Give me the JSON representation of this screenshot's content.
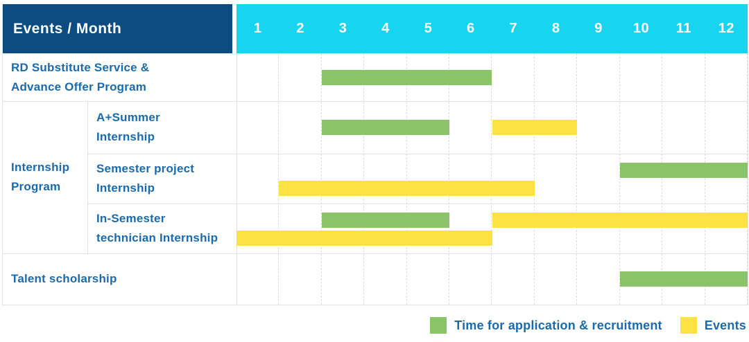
{
  "table": {
    "title": "Events / Month",
    "months": [
      "1",
      "2",
      "3",
      "4",
      "5",
      "6",
      "7",
      "8",
      "9",
      "10",
      "11",
      "12"
    ],
    "group_label_lines": [
      "Internship",
      "Program"
    ],
    "rows": [
      {
        "id": "rd-substitute-service-advance-offer-program",
        "label_lines": [
          "RD Substitute Service &",
          "Advance Offer Program"
        ],
        "group": null,
        "lines": [
          [
            {
              "type": "application",
              "start": 3,
              "end": 6
            }
          ]
        ]
      },
      {
        "id": "a-plus-summer-internship",
        "label_lines": [
          "A+Summer",
          "Internship"
        ],
        "group": "internship-program",
        "lines": [
          [
            {
              "type": "application",
              "start": 3,
              "end": 5
            },
            {
              "type": "events",
              "start": 7,
              "end": 8
            }
          ]
        ]
      },
      {
        "id": "semester-project-internship",
        "label_lines": [
          "Semester project",
          "Internship"
        ],
        "group": "internship-program",
        "lines": [
          [
            {
              "type": "application",
              "start": 10,
              "end": 12
            }
          ],
          [
            {
              "type": "events",
              "start": 2,
              "end": 7
            }
          ]
        ]
      },
      {
        "id": "in-semester-technician-internship",
        "label_lines": [
          "In-Semester",
          "technician Internship"
        ],
        "group": "internship-program",
        "lines": [
          [
            {
              "type": "application",
              "start": 3,
              "end": 5
            },
            {
              "type": "events",
              "start": 7,
              "end": 12
            }
          ],
          [
            {
              "type": "events",
              "start": 1,
              "end": 6
            }
          ]
        ]
      },
      {
        "id": "talent-scholarship",
        "label_lines": [
          "Talent scholarship"
        ],
        "group": null,
        "lines": [
          [
            {
              "type": "application",
              "start": 10,
              "end": 12
            }
          ]
        ]
      }
    ],
    "legend": [
      {
        "type": "application",
        "label": "Time for application & recruitment"
      },
      {
        "type": "events",
        "label": "Events"
      }
    ]
  },
  "colors": {
    "header_bg": "#0c4c80",
    "months_bg": "#17d5ee",
    "header_text": "#ffffff",
    "label_text": "#1b6aab",
    "application": "#8bc369",
    "events": "#fde244"
  },
  "chart_data": {
    "type": "table",
    "subtype": "gantt",
    "title": "Events / Month",
    "x_axis": {
      "label": "Month",
      "ticks": [
        1,
        2,
        3,
        4,
        5,
        6,
        7,
        8,
        9,
        10,
        11,
        12
      ],
      "range": [
        1,
        12
      ]
    },
    "legend": [
      "Time for application & recruitment",
      "Events"
    ],
    "legend_position": "bottom-right",
    "grid": true,
    "rows": [
      {
        "event": "RD Substitute Service & Advance Offer Program",
        "group": null,
        "application_recruitment_month_ranges": [
          [
            3,
            6
          ]
        ],
        "events_month_ranges": []
      },
      {
        "event": "A+Summer Internship",
        "group": "Internship Program",
        "application_recruitment_month_ranges": [
          [
            3,
            5
          ]
        ],
        "events_month_ranges": [
          [
            7,
            8
          ]
        ]
      },
      {
        "event": "Semester project Internship",
        "group": "Internship Program",
        "application_recruitment_month_ranges": [
          [
            10,
            12
          ]
        ],
        "events_month_ranges": [
          [
            2,
            7
          ]
        ]
      },
      {
        "event": "In-Semester technician Internship",
        "group": "Internship Program",
        "application_recruitment_month_ranges": [
          [
            3,
            5
          ]
        ],
        "events_month_ranges": [
          [
            7,
            12
          ],
          [
            1,
            6
          ]
        ]
      },
      {
        "event": "Talent scholarship",
        "group": null,
        "application_recruitment_month_ranges": [
          [
            10,
            12
          ]
        ],
        "events_month_ranges": []
      }
    ]
  }
}
